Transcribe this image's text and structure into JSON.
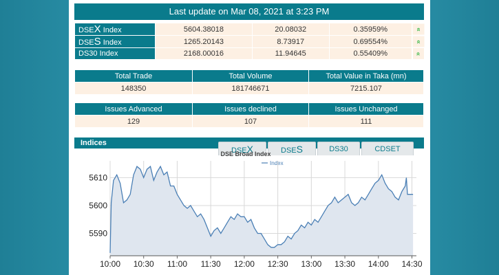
{
  "header": {
    "update_text": "Last update on Mar 08, 2021 at 3:23 PM"
  },
  "indices": [
    {
      "prefix": "DSE",
      "letter": "X",
      "suffix": " Index",
      "value": "5604.38018",
      "change": "20.08032",
      "pct": "0.35959%",
      "arrow": "»"
    },
    {
      "prefix": "DSE",
      "letter": "S",
      "suffix": " Index",
      "value": "1265.20143",
      "change": "8.73917",
      "pct": "0.69554%",
      "arrow": "»"
    },
    {
      "prefix": "DS30 Index",
      "letter": "",
      "suffix": "",
      "value": "2168.00016",
      "change": "11.94645",
      "pct": "0.55409%",
      "arrow": "»"
    }
  ],
  "trade": {
    "headers": [
      "Total Trade",
      "Total Volume",
      "Total Value in Taka (mn)"
    ],
    "values": [
      "148350",
      "181746671",
      "7215.107"
    ]
  },
  "issues": {
    "headers": [
      "Issues Advanced",
      "Issues declined",
      "Issues Unchanged"
    ],
    "values": [
      "129",
      "107",
      "111"
    ]
  },
  "chart_section": {
    "title": "Indices",
    "tabs": [
      {
        "prefix": "DSE",
        "letter": "X"
      },
      {
        "prefix": "DSE",
        "letter": "S"
      },
      {
        "prefix": "DS30",
        "letter": ""
      },
      {
        "prefix": "CDSET",
        "letter": ""
      }
    ]
  },
  "chart_data": {
    "type": "area",
    "title": "DSE Broad Index",
    "series": [
      {
        "name": "Index",
        "color": "#4a7fb5"
      }
    ],
    "ylim": [
      5582,
      5616
    ],
    "yticks": [
      5590,
      5600,
      5610
    ],
    "xlim": [
      "10:00",
      "14:30"
    ],
    "xticks": [
      "10:00",
      "10:30",
      "11:00",
      "11:30",
      "12:00",
      "12:30",
      "13:00",
      "13:30",
      "14:00",
      "14:30"
    ],
    "points": [
      [
        "10:00",
        5583
      ],
      [
        "10:01",
        5601
      ],
      [
        "10:03",
        5609
      ],
      [
        "10:06",
        5611
      ],
      [
        "10:09",
        5608
      ],
      [
        "10:12",
        5601
      ],
      [
        "10:15",
        5602
      ],
      [
        "10:18",
        5604
      ],
      [
        "10:21",
        5611
      ],
      [
        "10:24",
        5614
      ],
      [
        "10:27",
        5613
      ],
      [
        "10:30",
        5610
      ],
      [
        "10:33",
        5613
      ],
      [
        "10:36",
        5614
      ],
      [
        "10:39",
        5609
      ],
      [
        "10:42",
        5612
      ],
      [
        "10:45",
        5614
      ],
      [
        "10:48",
        5611
      ],
      [
        "10:51",
        5612
      ],
      [
        "10:54",
        5607
      ],
      [
        "10:57",
        5607
      ],
      [
        "11:00",
        5604
      ],
      [
        "11:03",
        5602
      ],
      [
        "11:06",
        5600
      ],
      [
        "11:09",
        5599
      ],
      [
        "11:12",
        5600
      ],
      [
        "11:15",
        5598
      ],
      [
        "11:18",
        5596
      ],
      [
        "11:21",
        5597
      ],
      [
        "11:24",
        5595
      ],
      [
        "11:27",
        5592
      ],
      [
        "11:30",
        5589
      ],
      [
        "11:33",
        5591
      ],
      [
        "11:36",
        5592
      ],
      [
        "11:39",
        5590
      ],
      [
        "11:42",
        5592
      ],
      [
        "11:45",
        5594
      ],
      [
        "11:48",
        5596
      ],
      [
        "11:51",
        5595
      ],
      [
        "11:54",
        5597
      ],
      [
        "11:57",
        5596
      ],
      [
        "12:00",
        5596
      ],
      [
        "12:03",
        5594
      ],
      [
        "12:06",
        5595
      ],
      [
        "12:09",
        5592
      ],
      [
        "12:12",
        5590
      ],
      [
        "12:15",
        5590
      ],
      [
        "12:18",
        5588
      ],
      [
        "12:21",
        5586
      ],
      [
        "12:24",
        5585
      ],
      [
        "12:27",
        5585
      ],
      [
        "12:30",
        5586
      ],
      [
        "12:33",
        5586
      ],
      [
        "12:36",
        5587
      ],
      [
        "12:39",
        5589
      ],
      [
        "12:42",
        5588
      ],
      [
        "12:45",
        5590
      ],
      [
        "12:48",
        5591
      ],
      [
        "12:51",
        5593
      ],
      [
        "12:54",
        5592
      ],
      [
        "12:57",
        5594
      ],
      [
        "13:00",
        5593
      ],
      [
        "13:03",
        5595
      ],
      [
        "13:06",
        5594
      ],
      [
        "13:09",
        5596
      ],
      [
        "13:12",
        5598
      ],
      [
        "13:15",
        5600
      ],
      [
        "13:18",
        5601
      ],
      [
        "13:21",
        5603
      ],
      [
        "13:24",
        5601
      ],
      [
        "13:27",
        5602
      ],
      [
        "13:30",
        5603
      ],
      [
        "13:33",
        5604
      ],
      [
        "13:36",
        5601
      ],
      [
        "13:39",
        5600
      ],
      [
        "13:42",
        5601
      ],
      [
        "13:45",
        5603
      ],
      [
        "13:48",
        5602
      ],
      [
        "13:51",
        5604
      ],
      [
        "13:54",
        5606
      ],
      [
        "13:57",
        5608
      ],
      [
        "14:00",
        5609
      ],
      [
        "14:03",
        5611
      ],
      [
        "14:06",
        5608
      ],
      [
        "14:09",
        5606
      ],
      [
        "14:12",
        5605
      ],
      [
        "14:15",
        5603
      ],
      [
        "14:18",
        5602
      ],
      [
        "14:21",
        5605
      ],
      [
        "14:24",
        5607
      ],
      [
        "14:25",
        5610
      ],
      [
        "14:26",
        5604
      ],
      [
        "14:29",
        5604
      ],
      [
        "14:31",
        5604
      ]
    ]
  }
}
